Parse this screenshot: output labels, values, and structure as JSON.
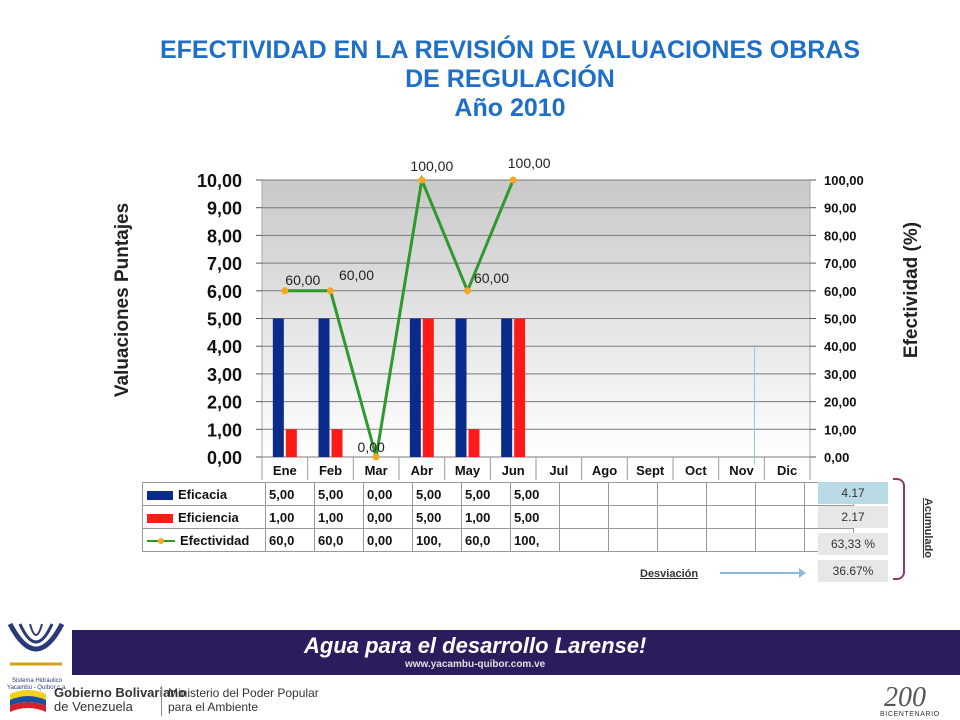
{
  "title": {
    "line1": "EFECTIVIDAD EN LA REVISIÓN DE VALUACIONES OBRAS",
    "line2": "DE REGULACIÓN",
    "line3": "Año 2010"
  },
  "colors": {
    "title": "#1f6fc6",
    "eficacia": "#0a2a8c",
    "eficiencia": "#ff1a1a",
    "efectividad": "#2e9a2e",
    "marker": "#f5a623"
  },
  "chart_data": {
    "type": "bar",
    "categories": [
      "Ene",
      "Feb",
      "Mar",
      "Abr",
      "May",
      "Jun",
      "Jul",
      "Ago",
      "Sept",
      "Oct",
      "Nov",
      "Dic"
    ],
    "series": [
      {
        "name": "Eficacia",
        "type": "bar",
        "axis": "left",
        "values": [
          5.0,
          5.0,
          0.0,
          5.0,
          5.0,
          5.0,
          null,
          null,
          null,
          null,
          null,
          null
        ]
      },
      {
        "name": "Eficiencia",
        "type": "bar",
        "axis": "left",
        "values": [
          1.0,
          1.0,
          0.0,
          5.0,
          1.0,
          5.0,
          null,
          null,
          null,
          null,
          null,
          null
        ]
      },
      {
        "name": "Efectividad",
        "type": "line",
        "axis": "right",
        "values": [
          60,
          60,
          0,
          100,
          60,
          100,
          null,
          null,
          null,
          null,
          null,
          null
        ]
      }
    ],
    "data_labels": [
      "60,00",
      "60,00",
      "0,00",
      "100,00",
      "60,00",
      "100,00"
    ],
    "left_axis": {
      "label": "Valuaciones Puntajes",
      "range": [
        0,
        10
      ],
      "ticks": [
        "0,00",
        "1,00",
        "2,00",
        "3,00",
        "4,00",
        "5,00",
        "6,00",
        "7,00",
        "8,00",
        "9,00",
        "10,00"
      ]
    },
    "right_axis": {
      "label": "Efectividad  (%)",
      "range": [
        0,
        100
      ],
      "ticks": [
        "0,00",
        "10,00",
        "20,00",
        "30,00",
        "40,00",
        "50,00",
        "60,00",
        "70,00",
        "80,00",
        "90,00",
        "100,00"
      ]
    },
    "grid": true,
    "data_table": [
      {
        "label": "Eficacia",
        "cells": [
          "5,00",
          "5,00",
          "0,00",
          "5,00",
          "5,00",
          "5,00",
          "",
          "",
          "",
          "",
          "",
          ""
        ]
      },
      {
        "label": "Eficiencia",
        "cells": [
          "1,00",
          "1,00",
          "0,00",
          "5,00",
          "1,00",
          "5,00",
          "",
          "",
          "",
          "",
          "",
          ""
        ]
      },
      {
        "label": "Efectividad",
        "cells": [
          "60,0",
          "60,0",
          "0,00",
          "100,",
          "60,0",
          "100,",
          "",
          "",
          "",
          "",
          "",
          ""
        ]
      }
    ]
  },
  "stats": [
    "4.17",
    "2.17",
    "63,33 %",
    "36.67%"
  ],
  "acumulado_label": "Acumulado",
  "desviacion_label": "Desviación",
  "footer": {
    "org_small": "Sistema Hidráulico Yacambú - Quíbor c.a.",
    "banner_main": "Agua para el desarrollo Larense!",
    "banner_sub": "www.yacambu-quibor.com.ve",
    "gov_line1": "Gobierno Bolivariano",
    "gov_line2": "de Venezuela",
    "min_line1": "Ministerio del Poder Popular",
    "min_line2": "para el Ambiente",
    "bicentenario": "BICENTENARIO"
  }
}
